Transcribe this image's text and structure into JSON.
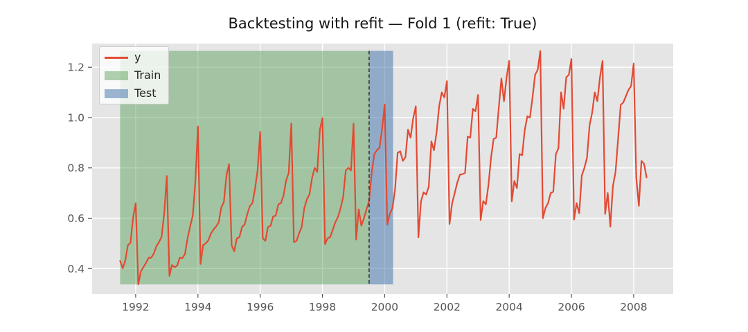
{
  "title": "Backtesting with refit — Fold 1 (refit: True)",
  "legend": {
    "items": [
      {
        "label": "y",
        "marker": "line",
        "color": "#E24A33"
      },
      {
        "label": "Train",
        "marker": "patch",
        "color": "rgba(70,150,70,0.42)"
      },
      {
        "label": "Test",
        "marker": "patch",
        "color": "rgba(59,111,171,0.5)"
      }
    ]
  },
  "colors": {
    "figure_bg": "#ffffff",
    "axes_bg": "#e5e5e5",
    "grid": "#ffffff",
    "series_line": "#E24A33",
    "train_fill": "rgba(70,150,70,0.42)",
    "test_fill": "rgba(59,111,171,0.5)",
    "split_line": "#333333",
    "tick_color": "#555555",
    "tick_label_color": "#555555",
    "title_color": "#141414"
  },
  "chart_data": {
    "type": "line",
    "title": "Backtesting with refit — Fold 1 (refit: True)",
    "series_name": "y",
    "start": "1991-07",
    "freq": "monthly",
    "x_start_year_fraction": 1991.5,
    "values": [
      0.43,
      0.401,
      0.432,
      0.493,
      0.502,
      0.603,
      0.66,
      0.337,
      0.389,
      0.406,
      0.423,
      0.443,
      0.443,
      0.46,
      0.489,
      0.505,
      0.527,
      0.62,
      0.768,
      0.371,
      0.414,
      0.405,
      0.412,
      0.443,
      0.441,
      0.458,
      0.52,
      0.568,
      0.61,
      0.745,
      0.965,
      0.418,
      0.493,
      0.5,
      0.512,
      0.539,
      0.555,
      0.567,
      0.583,
      0.643,
      0.664,
      0.77,
      0.815,
      0.492,
      0.469,
      0.52,
      0.525,
      0.565,
      0.575,
      0.615,
      0.648,
      0.66,
      0.716,
      0.79,
      0.943,
      0.52,
      0.51,
      0.565,
      0.57,
      0.607,
      0.61,
      0.655,
      0.66,
      0.69,
      0.75,
      0.78,
      0.976,
      0.505,
      0.51,
      0.54,
      0.565,
      0.64,
      0.675,
      0.695,
      0.76,
      0.8,
      0.784,
      0.95,
      0.998,
      0.497,
      0.52,
      0.525,
      0.555,
      0.585,
      0.605,
      0.64,
      0.685,
      0.79,
      0.8,
      0.79,
      0.976,
      0.515,
      0.635,
      0.57,
      0.6,
      0.635,
      0.67,
      0.78,
      0.855,
      0.87,
      0.88,
      0.955,
      1.052,
      0.575,
      0.618,
      0.64,
      0.714,
      0.86,
      0.866,
      0.828,
      0.842,
      0.952,
      0.92,
      0.998,
      1.045,
      0.524,
      0.667,
      0.703,
      0.694,
      0.726,
      0.905,
      0.87,
      0.94,
      1.045,
      1.1,
      1.08,
      1.145,
      0.577,
      0.659,
      0.7,
      0.742,
      0.773,
      0.775,
      0.78,
      0.924,
      0.92,
      1.035,
      1.025,
      1.09,
      0.593,
      0.668,
      0.655,
      0.731,
      0.84,
      0.915,
      0.92,
      1.04,
      1.155,
      1.065,
      1.16,
      1.225,
      0.667,
      0.748,
      0.72,
      0.855,
      0.85,
      0.95,
      1.005,
      1.0,
      1.08,
      1.17,
      1.19,
      1.265,
      0.6,
      0.641,
      0.66,
      0.7,
      0.705,
      0.855,
      0.878,
      1.1,
      1.035,
      1.16,
      1.17,
      1.233,
      0.595,
      0.66,
      0.62,
      0.77,
      0.8,
      0.84,
      0.97,
      1.02,
      1.1,
      1.065,
      1.16,
      1.225,
      0.617,
      0.7,
      0.567,
      0.728,
      0.783,
      0.916,
      1.05,
      1.06,
      1.085,
      1.11,
      1.125,
      1.215,
      0.762,
      0.649,
      0.828,
      0.816,
      0.762
    ],
    "xticks": [
      1992,
      1994,
      1996,
      1998,
      2000,
      2002,
      2004,
      2006,
      2008
    ],
    "yticks": [
      0.4,
      0.6,
      0.8,
      1.0,
      1.2
    ],
    "xlim": [
      1990.6,
      2009.27
    ],
    "ylim": [
      0.299,
      1.294
    ],
    "train_span": [
      1991.5,
      1999.5
    ],
    "test_span": [
      1999.5,
      2000.27
    ],
    "refit_split_x": 1999.5,
    "span_value_range": [
      0.337,
      1.265
    ],
    "legend_position": "upper left",
    "grid": true
  }
}
